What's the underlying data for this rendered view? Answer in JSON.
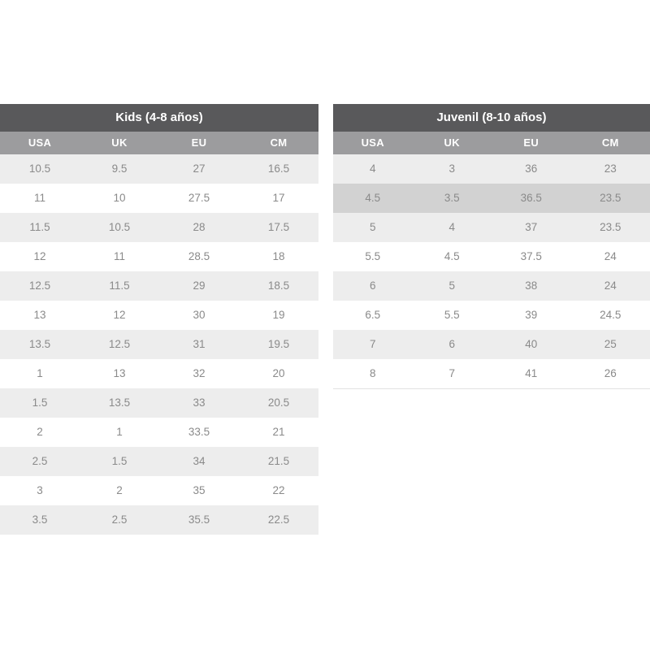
{
  "tables": [
    {
      "title": "Kids (4-8 años)",
      "columns": [
        "USA",
        "UK",
        "EU",
        "CM"
      ],
      "rows": [
        [
          "10.5",
          "9.5",
          "27",
          "16.5"
        ],
        [
          "11",
          "10",
          "27.5",
          "17"
        ],
        [
          "11.5",
          "10.5",
          "28",
          "17.5"
        ],
        [
          "12",
          "11",
          "28.5",
          "18"
        ],
        [
          "12.5",
          "11.5",
          "29",
          "18.5"
        ],
        [
          "13",
          "12",
          "30",
          "19"
        ],
        [
          "13.5",
          "12.5",
          "31",
          "19.5"
        ],
        [
          "1",
          "13",
          "32",
          "20"
        ],
        [
          "1.5",
          "13.5",
          "33",
          "20.5"
        ],
        [
          "2",
          "1",
          "33.5",
          "21"
        ],
        [
          "2.5",
          "1.5",
          "34",
          "21.5"
        ],
        [
          "3",
          "2",
          "35",
          "22"
        ],
        [
          "3.5",
          "2.5",
          "35.5",
          "22.5"
        ]
      ],
      "highlighted_row": null
    },
    {
      "title": "Juvenil (8-10 años)",
      "columns": [
        "USA",
        "UK",
        "EU",
        "CM"
      ],
      "rows": [
        [
          "4",
          "3",
          "36",
          "23"
        ],
        [
          "4.5",
          "3.5",
          "36.5",
          "23.5"
        ],
        [
          "5",
          "4",
          "37",
          "23.5"
        ],
        [
          "5.5",
          "4.5",
          "37.5",
          "24"
        ],
        [
          "6",
          "5",
          "38",
          "24"
        ],
        [
          "6.5",
          "5.5",
          "39",
          "24.5"
        ],
        [
          "7",
          "6",
          "40",
          "25"
        ],
        [
          "8",
          "7",
          "41",
          "26"
        ]
      ],
      "highlighted_row": 1
    }
  ],
  "colors": {
    "header_bg": "#59595B",
    "subheader_bg": "#9C9C9E",
    "row_alt_bg": "#EDEDED",
    "row_highlight_bg": "#D2D2D2",
    "cell_text": "#8A8A8A",
    "header_text": "#FFFFFF"
  }
}
